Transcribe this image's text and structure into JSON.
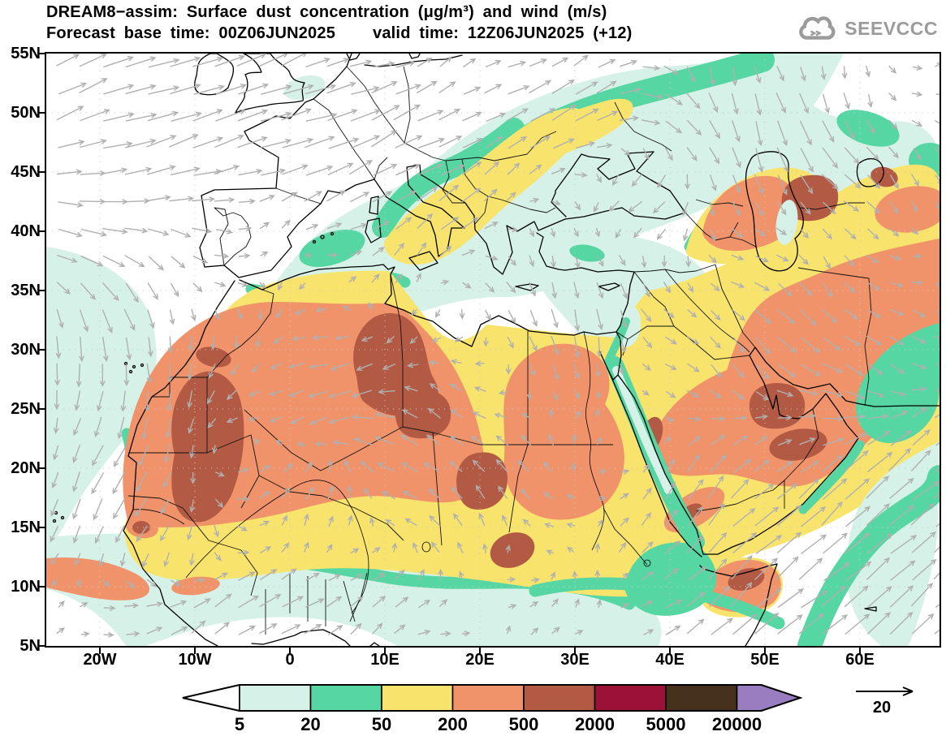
{
  "header": {
    "title": "DREAM8−assim: Surface dust concentration (μg/m³) and wind (m/s)",
    "forecast_base": "Forecast base time: 00Z06JUN2025",
    "valid_time": "valid time: 12Z06JUN2025 (+12)",
    "logo_text": "SEEVCCC"
  },
  "axes": {
    "y_labels": [
      "55N",
      "50N",
      "45N",
      "40N",
      "35N",
      "30N",
      "25N",
      "20N",
      "15N",
      "10N",
      "5N"
    ],
    "x_labels": [
      "20W",
      "10W",
      "0",
      "10E",
      "20E",
      "30E",
      "40E",
      "50E",
      "60E"
    ]
  },
  "colorbar": {
    "levels": [
      "5",
      "20",
      "50",
      "200",
      "500",
      "2000",
      "5000",
      "20000"
    ],
    "segment_colors": [
      "#ffffff",
      "#d6f2e8",
      "#56d6a2",
      "#f8e46d",
      "#f0936a",
      "#b35a44",
      "#9c1236",
      "#46311c",
      "#9a7cc0"
    ]
  },
  "wind_legend": {
    "reference_speed": "20"
  },
  "chart_data": {
    "type": "heatmap",
    "title": "DREAM8−assim: Surface dust concentration (μg/m³) and wind (m/s)",
    "model": "DREAM8−assim",
    "variable": "Surface dust concentration (μg/m³) and wind (m/s)",
    "forecast_base_time": "00Z06JUN2025",
    "valid_time": "12Z06JUN2025",
    "lead_hours": 12,
    "x_tick_labels": [
      "20W",
      "10W",
      "0",
      "10E",
      "20E",
      "30E",
      "40E",
      "50E",
      "60E"
    ],
    "y_tick_labels": [
      "55N",
      "50N",
      "45N",
      "40N",
      "35N",
      "30N",
      "25N",
      "20N",
      "15N",
      "10N",
      "5N"
    ],
    "contour_levels_ugm3": [
      5,
      20,
      50,
      200,
      500,
      2000,
      5000,
      20000
    ],
    "contour_colors": [
      "#ffffff",
      "#d6f2e8",
      "#56d6a2",
      "#f8e46d",
      "#f0936a",
      "#b35a44",
      "#9c1236",
      "#46311c",
      "#9a7cc0"
    ],
    "wind_reference_ms": 20,
    "legend_position": "bottom",
    "grid": "dotted 10-degree graticule"
  }
}
